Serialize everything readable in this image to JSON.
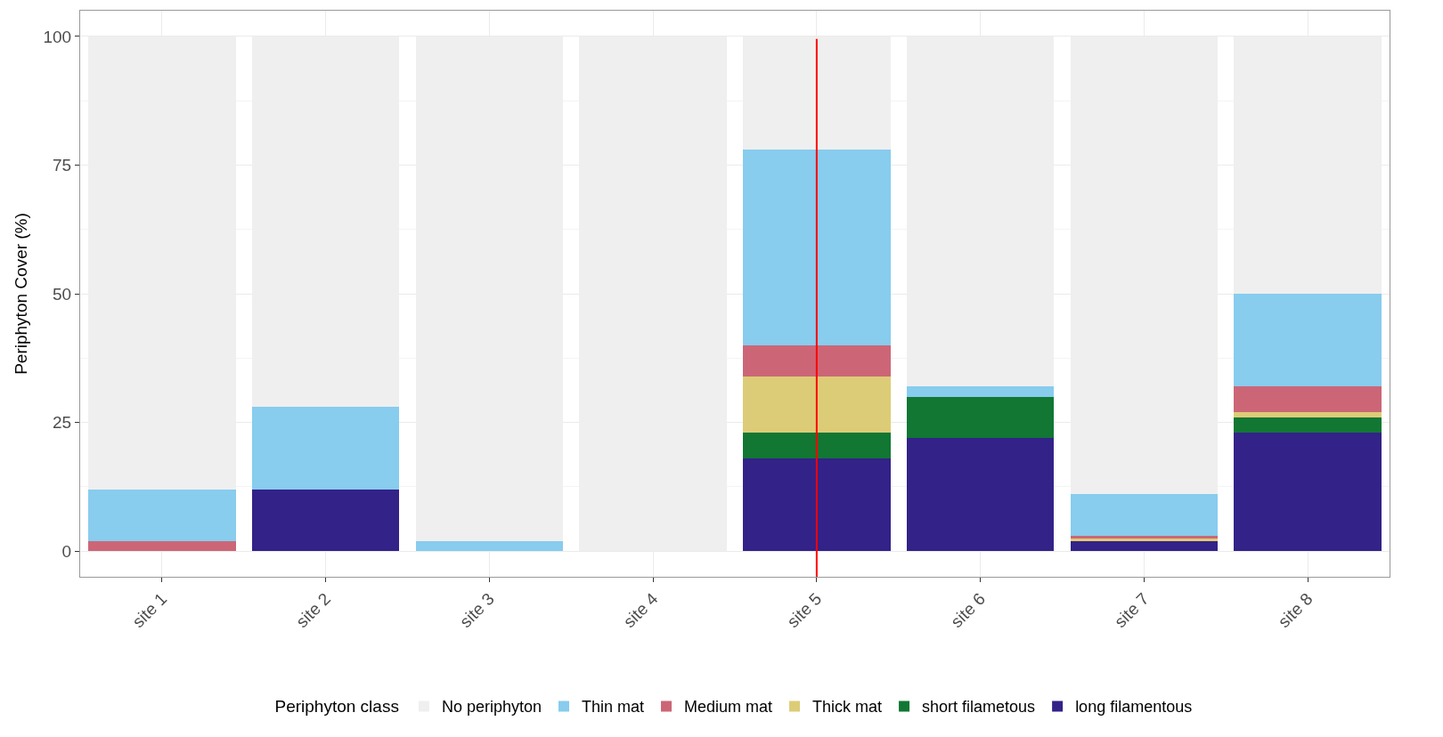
{
  "chart_data": {
    "type": "bar",
    "stacked": true,
    "ylabel": "Periphyton Cover (%)",
    "legend_title": "Periphyton class",
    "categories": [
      "site 1",
      "site 2",
      "site 3",
      "site 4",
      "site 5",
      "site 6",
      "site 7",
      "site 8"
    ],
    "series": [
      {
        "name": "long filamentous",
        "color": "#332288",
        "values": [
          0,
          12,
          0,
          0,
          18,
          22,
          2,
          23
        ]
      },
      {
        "name": "short filametous",
        "color": "#117733",
        "values": [
          0,
          0,
          0,
          0,
          5,
          8,
          0,
          3
        ]
      },
      {
        "name": "Thick mat",
        "color": "#ddcc77",
        "values": [
          0,
          0,
          0,
          0,
          11,
          0,
          0.5,
          1
        ]
      },
      {
        "name": "Medium mat",
        "color": "#cc6677",
        "values": [
          2,
          0,
          0,
          0,
          6,
          0,
          0.5,
          5
        ]
      },
      {
        "name": "Thin mat",
        "color": "#88ccee",
        "values": [
          10,
          16,
          2,
          0,
          38,
          2,
          8,
          18
        ]
      },
      {
        "name": "No periphyton",
        "color": "#efefef",
        "values": [
          88,
          72,
          98,
          100,
          22,
          68,
          89,
          50
        ]
      }
    ],
    "ylim": [
      -5,
      105
    ],
    "yticks": [
      0,
      25,
      50,
      75,
      100
    ],
    "grid": true,
    "legend": "bottom",
    "ref_lines": [
      {
        "axis": "x",
        "value": "site 5",
        "color": "#ff0000"
      }
    ]
  }
}
